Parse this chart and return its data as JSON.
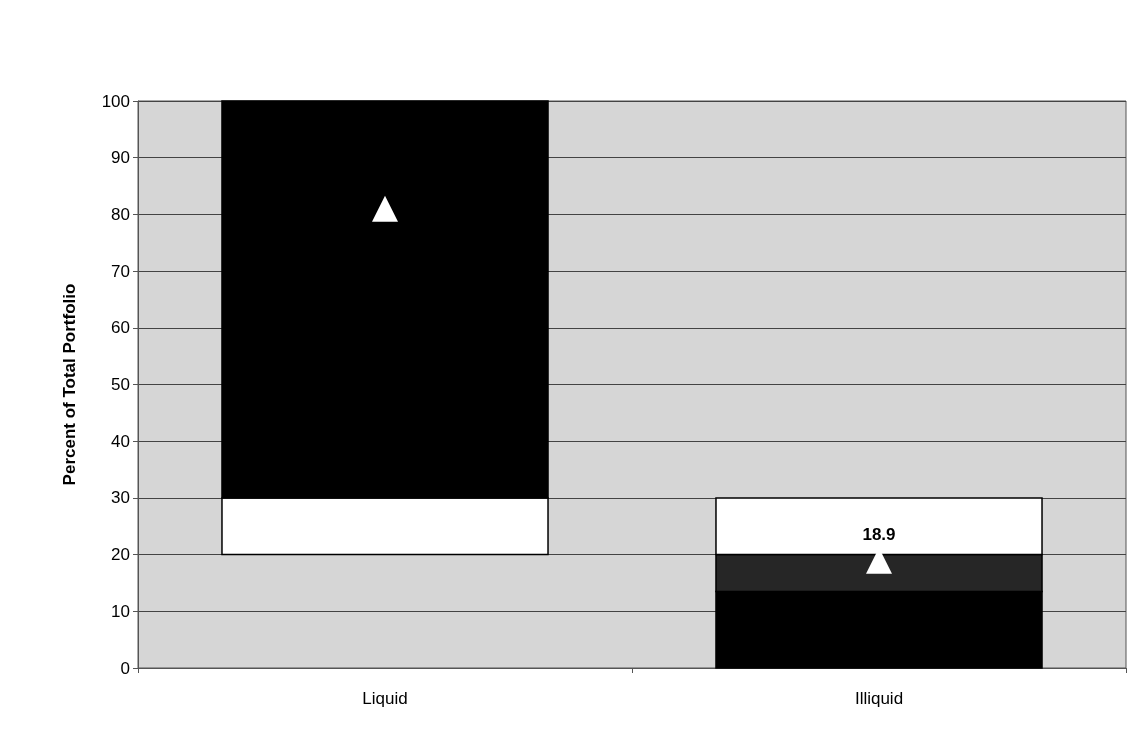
{
  "chart_data": {
    "type": "bar",
    "ylabel": "Percent of Total Portfolio",
    "categories": [
      "Liquid",
      "Illiquid"
    ],
    "series": [
      {
        "color": "#000000",
        "values": [
          null,
          13.5
        ],
        "base": [
          null,
          0
        ]
      },
      {
        "color": "#262626",
        "values": [
          null,
          6.5
        ],
        "base": [
          null,
          13.5
        ]
      },
      {
        "color": "#ffffff",
        "values": [
          10,
          10
        ],
        "base": [
          20,
          20
        ]
      },
      {
        "color": "#000000",
        "values": [
          70,
          null
        ],
        "base": [
          30,
          null
        ]
      },
      {
        "type": "scatter",
        "marker": "triangle",
        "color": "#ffffff",
        "x": [
          "Liquid",
          "Illiquid"
        ],
        "values": [
          81,
          18.9
        ],
        "value_labels": [
          null,
          "18.9"
        ]
      }
    ],
    "ylim": [
      0,
      100
    ],
    "yticks": [
      0,
      10,
      20,
      30,
      40,
      50,
      60,
      70,
      80,
      90,
      100
    ],
    "grid": "y"
  }
}
